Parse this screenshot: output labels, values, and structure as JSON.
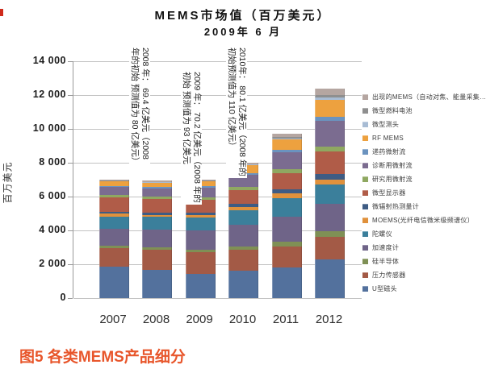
{
  "figure": {
    "title_line1": "MEMS市场值（百万美元）",
    "title_line2": "2009年 6 月",
    "caption": "图5  各类MEMS产品细分",
    "caption_color": "#e8562b"
  },
  "y_axis": {
    "label": "百万美元",
    "ticks": [
      {
        "label": "0",
        "value": 0
      },
      {
        "label": "2 000",
        "value": 2000
      },
      {
        "label": "4 000",
        "value": 4000
      },
      {
        "label": "6 000",
        "value": 6000
      },
      {
        "label": "8 000",
        "value": 8000
      },
      {
        "label": "10 000",
        "value": 10000
      },
      {
        "label": "12 000",
        "value": 12000
      },
      {
        "label": "14 000",
        "value": 14000
      }
    ]
  },
  "annotations": [
    {
      "line1": "2008 年： 69.4 亿美元（2008",
      "line2": "年的初始 预测值为 80 亿美元）"
    },
    {
      "line1": "2009 年： 70.2 亿美元（2008 年的",
      "line2": "初始 预测值为 93 亿美元"
    },
    {
      "line1": "2010年： 80.1 亿美元（2008 年的",
      "line2": "初始预测值为 110 亿美元）"
    }
  ],
  "chart_data": {
    "type": "bar",
    "stacked": true,
    "title": "MEMS市场值（百万美元） 2009年 6 月",
    "xlabel": "",
    "ylabel": "百万美元",
    "ylim": [
      0,
      14000
    ],
    "grid": true,
    "legend_position": "right",
    "categories": [
      "2007",
      "2008",
      "2009",
      "2010",
      "2011",
      "2012"
    ],
    "totals_estimated": [
      7010,
      6940,
      7020,
      8010,
      9700,
      12400
    ],
    "series": [
      {
        "name": "出现的MEMS（自动对焦、能量采集…）",
        "color": "#b5a6a1",
        "values": [
          70,
          60,
          60,
          80,
          170,
          400
        ]
      },
      {
        "name": "微型燃料电池",
        "color": "#8f8f8f",
        "values": [
          20,
          20,
          30,
          40,
          80,
          150
        ]
      },
      {
        "name": "微型测头",
        "color": "#a8bcd4",
        "values": [
          30,
          30,
          30,
          50,
          80,
          150
        ]
      },
      {
        "name": "RF MEMS",
        "color": "#eda13f",
        "values": [
          250,
          250,
          280,
          450,
          600,
          1000
        ]
      },
      {
        "name": "递药微射流",
        "color": "#6b93bf",
        "values": [
          80,
          80,
          100,
          120,
          150,
          200
        ]
      },
      {
        "name": "诊断用微射流",
        "color": "#7b6c90",
        "values": [
          450,
          500,
          550,
          700,
          1000,
          1550
        ]
      },
      {
        "name": "研究用微射流",
        "color": "#8fa861",
        "values": [
          150,
          150,
          160,
          200,
          250,
          300
        ]
      },
      {
        "name": "微型显示器",
        "color": "#b05c48",
        "values": [
          850,
          800,
          750,
          800,
          950,
          1300
        ]
      },
      {
        "name": "微辐射热测量计",
        "color": "#3e5c84",
        "values": [
          120,
          130,
          150,
          200,
          250,
          350
        ]
      },
      {
        "name": "MOEMS(光纤电信微米级频谱仪）",
        "color": "#e0913c",
        "values": [
          160,
          120,
          130,
          200,
          250,
          300
        ]
      },
      {
        "name": "陀螺仪",
        "color": "#3b7f9b",
        "values": [
          750,
          750,
          800,
          850,
          1100,
          1150
        ]
      },
      {
        "name": "加速度计",
        "color": "#6f6488",
        "values": [
          1000,
          1050,
          1100,
          1250,
          1500,
          1600
        ]
      },
      {
        "name": "硅半导体",
        "color": "#7f9055",
        "values": [
          130,
          150,
          180,
          220,
          270,
          350
        ]
      },
      {
        "name": "压力传感器",
        "color": "#a35a46",
        "values": [
          1100,
          1200,
          1250,
          1250,
          1250,
          1300
        ]
      },
      {
        "name": "U型磁头",
        "color": "#53719d",
        "values": [
          1850,
          1650,
          1450,
          1600,
          1800,
          2300
        ]
      }
    ]
  }
}
